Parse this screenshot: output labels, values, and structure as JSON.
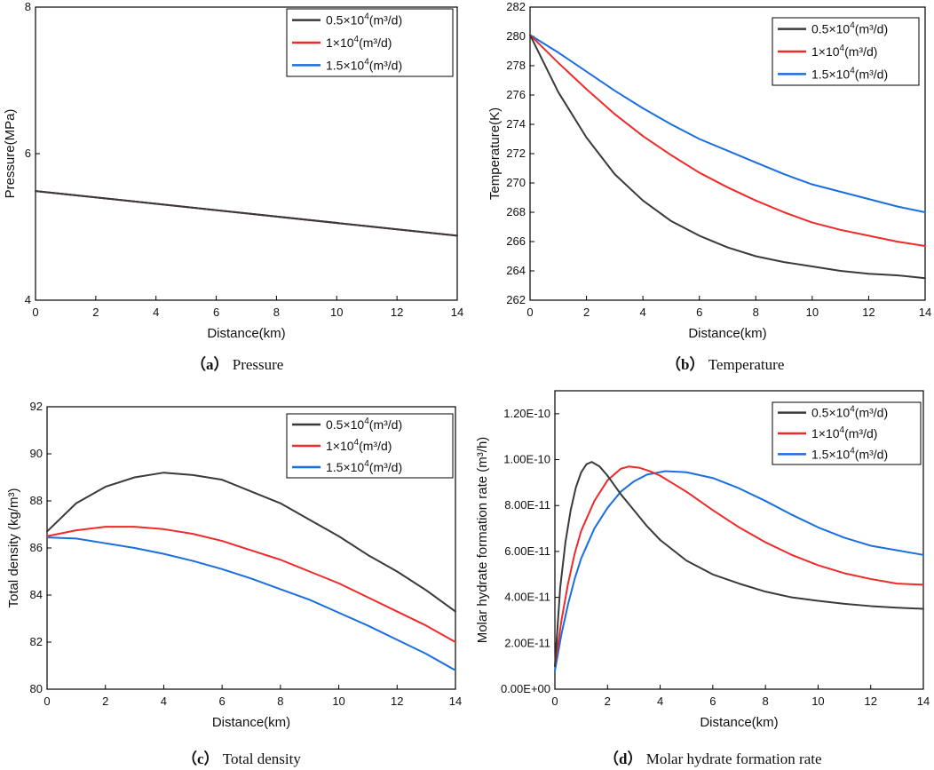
{
  "colors": {
    "series_0": "#3a3a3a",
    "series_1": "#ee2a2a",
    "series_2": "#1a6fe0"
  },
  "chart_data": [
    {
      "type": "line",
      "caption_tag": "（a）",
      "caption_text": "Pressure",
      "xlabel": "Distance(km)",
      "ylabel": "Pressure(MPa)",
      "xlim": [
        0,
        14
      ],
      "ylim": [
        4,
        8
      ],
      "xticks": [
        0,
        2,
        4,
        6,
        8,
        10,
        12,
        14
      ],
      "yticks": [
        4,
        6,
        8
      ],
      "ytick_labels": [
        "4",
        "6",
        "8"
      ],
      "legend": [
        {
          "base": "0.5×10",
          "exp": "4",
          "unit": "(m³/d)"
        },
        {
          "base": "1×10",
          "exp": "4",
          "unit": "(m³/d)"
        },
        {
          "base": "1.5×10",
          "exp": "4",
          "unit": "(m³/d)"
        }
      ],
      "series": [
        {
          "name": "0.5×10^4(m³/d)",
          "x": [
            0,
            14
          ],
          "y": [
            5.49,
            4.88
          ]
        },
        {
          "name": "1×10^4(m³/d)",
          "x": [
            0,
            14
          ],
          "y": [
            5.49,
            4.88
          ]
        },
        {
          "name": "1.5×10^4(m³/d)",
          "x": [
            0,
            14
          ],
          "y": [
            5.49,
            4.88
          ]
        }
      ]
    },
    {
      "type": "line",
      "caption_tag": "（b）",
      "caption_text": "Temperature",
      "xlabel": "Distance(km)",
      "ylabel": "Temperature(K)",
      "xlim": [
        0,
        14
      ],
      "ylim": [
        262,
        282
      ],
      "xticks": [
        0,
        2,
        4,
        6,
        8,
        10,
        12,
        14
      ],
      "yticks": [
        262,
        264,
        266,
        268,
        270,
        272,
        274,
        276,
        278,
        280,
        282
      ],
      "ytick_labels": [
        "262",
        "264",
        "266",
        "268",
        "270",
        "272",
        "274",
        "276",
        "278",
        "280",
        "282"
      ],
      "legend": [
        {
          "base": "0.5×10",
          "exp": "4",
          "unit": "(m³/d)"
        },
        {
          "base": "1×10",
          "exp": "4",
          "unit": "(m³/d)"
        },
        {
          "base": "1.5×10",
          "exp": "4",
          "unit": "(m³/d)"
        }
      ],
      "series": [
        {
          "name": "0.5×10^4(m³/d)",
          "x": [
            0,
            1,
            2,
            3,
            4,
            5,
            6,
            7,
            8,
            9,
            10,
            11,
            12,
            13,
            14
          ],
          "y": [
            280.1,
            276.2,
            273.1,
            270.6,
            268.8,
            267.4,
            266.4,
            265.6,
            265.0,
            264.6,
            264.3,
            264.0,
            263.8,
            263.7,
            263.5
          ]
        },
        {
          "name": "1×10^4(m³/d)",
          "x": [
            0,
            1,
            2,
            3,
            4,
            5,
            6,
            7,
            8,
            9,
            10,
            11,
            12,
            13,
            14
          ],
          "y": [
            280.1,
            278.2,
            276.4,
            274.7,
            273.2,
            271.9,
            270.7,
            269.7,
            268.8,
            268.0,
            267.3,
            266.8,
            266.4,
            266.0,
            265.7
          ]
        },
        {
          "name": "1.5×10^4(m³/d)",
          "x": [
            0,
            1,
            2,
            3,
            4,
            5,
            6,
            7,
            8,
            9,
            10,
            11,
            12,
            13,
            14
          ],
          "y": [
            280.1,
            278.9,
            277.6,
            276.3,
            275.1,
            274.0,
            273.0,
            272.2,
            271.4,
            270.6,
            269.9,
            269.4,
            268.9,
            268.4,
            268.0
          ]
        }
      ]
    },
    {
      "type": "line",
      "caption_tag": "（c）",
      "caption_text": "Total density",
      "xlabel": "Distance(km)",
      "ylabel": "Total density (kg/m³)",
      "xlim": [
        0,
        14
      ],
      "ylim": [
        80,
        92
      ],
      "xticks": [
        0,
        2,
        4,
        6,
        8,
        10,
        12,
        14
      ],
      "yticks": [
        80,
        82,
        84,
        86,
        88,
        90,
        92
      ],
      "ytick_labels": [
        "80",
        "82",
        "84",
        "86",
        "88",
        "90",
        "92"
      ],
      "legend": [
        {
          "base": "0.5×10",
          "exp": "4",
          "unit": "(m³/d)"
        },
        {
          "base": "1×10",
          "exp": "4",
          "unit": "(m³/d)"
        },
        {
          "base": "1.5×10",
          "exp": "4",
          "unit": "(m³/d)"
        }
      ],
      "series": [
        {
          "name": "0.5×10^4(m³/d)",
          "x": [
            0,
            1,
            2,
            3,
            4,
            5,
            6,
            7,
            8,
            9,
            10,
            11,
            12,
            13,
            14
          ],
          "y": [
            86.7,
            87.9,
            88.6,
            89.0,
            89.2,
            89.1,
            88.9,
            88.4,
            87.9,
            87.2,
            86.5,
            85.7,
            85.0,
            84.2,
            83.3
          ]
        },
        {
          "name": "1×10^4(m³/d)",
          "x": [
            0,
            1,
            2,
            3,
            4,
            5,
            6,
            7,
            8,
            9,
            10,
            11,
            12,
            13,
            14
          ],
          "y": [
            86.5,
            86.75,
            86.9,
            86.9,
            86.8,
            86.6,
            86.3,
            85.9,
            85.5,
            85.0,
            84.5,
            83.9,
            83.3,
            82.7,
            82.0
          ]
        },
        {
          "name": "1.5×10^4(m³/d)",
          "x": [
            0,
            1,
            2,
            3,
            4,
            5,
            6,
            7,
            8,
            9,
            10,
            11,
            12,
            13,
            14
          ],
          "y": [
            86.45,
            86.4,
            86.2,
            86.0,
            85.75,
            85.45,
            85.1,
            84.7,
            84.25,
            83.8,
            83.25,
            82.7,
            82.1,
            81.5,
            80.8
          ]
        }
      ]
    },
    {
      "type": "line",
      "caption_tag": "（d）",
      "caption_text": "Molar hydrate formation rate",
      "xlabel": "Distance(km)",
      "ylabel": "Molar hydrate formation rate (m³/h)",
      "xlim": [
        0,
        14
      ],
      "ylim": [
        0,
        1.3e-10
      ],
      "xticks": [
        0,
        2,
        4,
        6,
        8,
        10,
        12,
        14
      ],
      "yticks": [
        0,
        2e-11,
        4e-11,
        6e-11,
        8e-11,
        1e-10,
        1.2e-10
      ],
      "ytick_labels": [
        "0.00E+00",
        "2.00E-11",
        "4.00E-11",
        "6.00E-11",
        "8.00E-11",
        "1.00E-10",
        "1.20E-10"
      ],
      "legend": [
        {
          "base": "0.5×10",
          "exp": "4",
          "unit": "(m³/d)"
        },
        {
          "base": "1×10",
          "exp": "4",
          "unit": "(m³/d)"
        },
        {
          "base": "1.5×10",
          "exp": "4",
          "unit": "(m³/d)"
        }
      ],
      "series": [
        {
          "name": "0.5×10^4(m³/d)",
          "x": [
            0,
            0.2,
            0.4,
            0.6,
            0.8,
            1.0,
            1.2,
            1.4,
            1.7,
            2.0,
            2.5,
            3,
            3.5,
            4,
            5,
            6,
            7,
            8,
            9,
            10,
            11,
            12,
            13,
            14
          ],
          "y": [
            1e-11,
            4.4e-11,
            6.4e-11,
            7.8e-11,
            8.8e-11,
            9.45e-11,
            9.8e-11,
            9.9e-11,
            9.7e-11,
            9.3e-11,
            8.5e-11,
            7.8e-11,
            7.1e-11,
            6.5e-11,
            5.6e-11,
            5e-11,
            4.6e-11,
            4.25e-11,
            4e-11,
            3.85e-11,
            3.72e-11,
            3.62e-11,
            3.55e-11,
            3.5e-11
          ]
        },
        {
          "name": "1×10^4(m³/d)",
          "x": [
            0,
            0.25,
            0.5,
            0.75,
            1.0,
            1.5,
            2.0,
            2.5,
            2.8,
            3.2,
            3.6,
            4,
            5,
            6,
            7,
            8,
            9,
            10,
            11,
            12,
            13,
            14
          ],
          "y": [
            1e-11,
            3e-11,
            4.6e-11,
            5.9e-11,
            6.9e-11,
            8.2e-11,
            9.1e-11,
            9.6e-11,
            9.7e-11,
            9.65e-11,
            9.5e-11,
            9.3e-11,
            8.6e-11,
            7.8e-11,
            7.05e-11,
            6.4e-11,
            5.85e-11,
            5.4e-11,
            5.05e-11,
            4.8e-11,
            4.6e-11,
            4.55e-11
          ]
        },
        {
          "name": "1.5×10^4(m³/d)",
          "x": [
            0,
            0.25,
            0.5,
            0.75,
            1.0,
            1.5,
            2.0,
            2.5,
            3.0,
            3.5,
            4.2,
            5,
            6,
            7,
            8,
            9,
            10,
            11,
            12,
            13,
            14
          ],
          "y": [
            8e-12,
            2.4e-11,
            3.7e-11,
            4.8e-11,
            5.7e-11,
            7e-11,
            7.9e-11,
            8.6e-11,
            9.05e-11,
            9.35e-11,
            9.5e-11,
            9.45e-11,
            9.2e-11,
            8.75e-11,
            8.2e-11,
            7.6e-11,
            7.05e-11,
            6.6e-11,
            6.25e-11,
            6.05e-11,
            5.85e-11
          ]
        }
      ]
    }
  ]
}
